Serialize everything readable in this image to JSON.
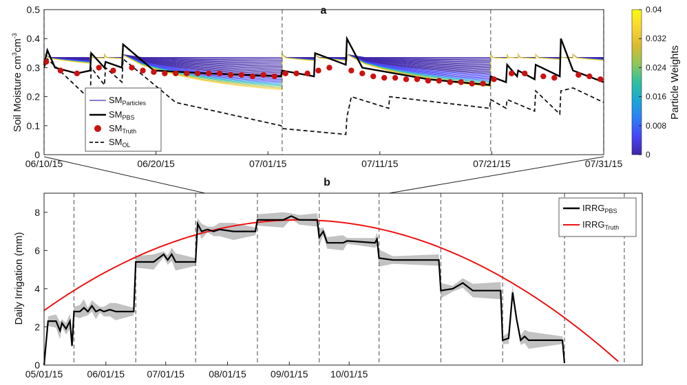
{
  "colors": {
    "axis": "#222222",
    "particle": "#3a2fb8",
    "pbs": "#000000",
    "truth_marker": "#cc1111",
    "openloop": "#111111",
    "truth_curve": "#ee1111",
    "ensemble_band": "#bbbbbb",
    "divider": "#666666"
  },
  "colorbar": {
    "label": "Particle Weights",
    "min": 0,
    "max": 0.04,
    "ticks": [
      "0",
      "0.008",
      "0.016",
      "0.024",
      "0.032",
      "0.04"
    ],
    "colormap": [
      "#3e26a8",
      "#4743f8",
      "#2d7ef6",
      "#1aa8d4",
      "#2fc0a0",
      "#8dc75a",
      "#d8bb30",
      "#f9d431",
      "#f9fb0e"
    ]
  },
  "chart_data": [
    {
      "panel": "a",
      "type": "line",
      "ylabel_main": "Soil Moisture cm",
      "ylabel_sup1": "3",
      "ylabel_mid": "cm",
      "ylabel_sup2": "-3",
      "ylim": [
        0,
        0.5
      ],
      "yticks": [
        "0",
        "0.1",
        "0.2",
        "0.3",
        "0.4",
        "0.5"
      ],
      "xticks": [
        "06/10/15",
        "06/20/15",
        "07/01/15",
        "07/11/15",
        "07/21/15",
        "07/31/15"
      ],
      "xrange_days": [
        0,
        51
      ],
      "dividers": [
        0,
        21.7,
        40.7,
        51
      ],
      "legend": {
        "particles": {
          "base": "SM",
          "sub": "Particles"
        },
        "pbs": {
          "base": "SM",
          "sub": "PBS"
        },
        "truth": {
          "base": "SM",
          "sub": "Truth"
        },
        "openloop": {
          "base": "SM",
          "sub": "OL"
        }
      },
      "irrigation_events": [
        0,
        4.2,
        5.5,
        7.1,
        21.7,
        24.7,
        27.6,
        40.7,
        42.2,
        43.2,
        44.8,
        47,
        48.2
      ],
      "pbs_series": [
        [
          0,
          0.31
        ],
        [
          0.3,
          0.36
        ],
        [
          1,
          0.3
        ],
        [
          3,
          0.28
        ],
        [
          4.2,
          0.29
        ],
        [
          4.3,
          0.35
        ],
        [
          5.5,
          0.3
        ],
        [
          5.6,
          0.32
        ],
        [
          7.1,
          0.3
        ],
        [
          7.2,
          0.38
        ],
        [
          10,
          0.29
        ],
        [
          15,
          0.28
        ],
        [
          21.6,
          0.27
        ],
        [
          21.7,
          0.29
        ],
        [
          24.6,
          0.27
        ],
        [
          24.7,
          0.35
        ],
        [
          27.5,
          0.31
        ],
        [
          27.6,
          0.4
        ],
        [
          29,
          0.3
        ],
        [
          35,
          0.26
        ],
        [
          40.6,
          0.24
        ],
        [
          40.7,
          0.27
        ],
        [
          42.1,
          0.25
        ],
        [
          42.2,
          0.31
        ],
        [
          43.1,
          0.27
        ],
        [
          43.2,
          0.29
        ],
        [
          44.7,
          0.26
        ],
        [
          44.8,
          0.31
        ],
        [
          47,
          0.27
        ],
        [
          47.1,
          0.4
        ],
        [
          48.2,
          0.29
        ],
        [
          51,
          0.25
        ]
      ],
      "openloop_series": [
        [
          0,
          0.3
        ],
        [
          0.3,
          0.33
        ],
        [
          4.2,
          0.19
        ],
        [
          4.3,
          0.3
        ],
        [
          5.5,
          0.24
        ],
        [
          5.6,
          0.3
        ],
        [
          7.1,
          0.25
        ],
        [
          7.2,
          0.33
        ],
        [
          12,
          0.18
        ],
        [
          21.6,
          0.1
        ],
        [
          21.7,
          0.09
        ],
        [
          27.5,
          0.07
        ],
        [
          27.6,
          0.13
        ],
        [
          28,
          0.2
        ],
        [
          31.4,
          0.16
        ],
        [
          31.5,
          0.2
        ],
        [
          40.6,
          0.16
        ],
        [
          40.7,
          0.19
        ],
        [
          42.1,
          0.16
        ],
        [
          42.2,
          0.19
        ],
        [
          44.7,
          0.15
        ],
        [
          44.8,
          0.22
        ],
        [
          47,
          0.14
        ],
        [
          47.1,
          0.22
        ],
        [
          48.2,
          0.23
        ],
        [
          51,
          0.18
        ]
      ],
      "truth_points": [
        [
          0.2,
          0.32
        ],
        [
          1.5,
          0.29
        ],
        [
          3,
          0.28
        ],
        [
          5,
          0.3
        ],
        [
          6.3,
          0.29
        ],
        [
          8,
          0.3
        ],
        [
          9,
          0.29
        ],
        [
          10,
          0.285
        ],
        [
          11,
          0.28
        ],
        [
          12,
          0.28
        ],
        [
          13,
          0.28
        ],
        [
          14,
          0.28
        ],
        [
          15,
          0.28
        ],
        [
          16,
          0.28
        ],
        [
          17,
          0.275
        ],
        [
          18,
          0.275
        ],
        [
          19,
          0.27
        ],
        [
          20,
          0.275
        ],
        [
          21,
          0.27
        ],
        [
          22,
          0.28
        ],
        [
          23,
          0.28
        ],
        [
          24,
          0.28
        ],
        [
          25,
          0.29
        ],
        [
          26,
          0.3
        ],
        [
          28,
          0.29
        ],
        [
          29,
          0.28
        ],
        [
          30,
          0.27
        ],
        [
          31,
          0.265
        ],
        [
          32,
          0.265
        ],
        [
          33,
          0.26
        ],
        [
          34,
          0.26
        ],
        [
          35,
          0.255
        ],
        [
          36,
          0.255
        ],
        [
          37,
          0.25
        ],
        [
          38,
          0.25
        ],
        [
          39,
          0.245
        ],
        [
          40,
          0.245
        ],
        [
          41,
          0.26
        ],
        [
          42.6,
          0.28
        ],
        [
          43.8,
          0.28
        ],
        [
          45.5,
          0.27
        ],
        [
          46.5,
          0.265
        ],
        [
          48.7,
          0.275
        ],
        [
          49.7,
          0.27
        ],
        [
          50.7,
          0.26
        ]
      ]
    },
    {
      "panel": "b",
      "type": "line",
      "ylabel": "Daily Irrigation (mm)",
      "ylim": [
        0,
        9
      ],
      "yticks": [
        "0",
        "2",
        "4",
        "6",
        "8"
      ],
      "xticks": [
        "05/01/15",
        "06/01/15",
        "07/01/15",
        "08/01/15",
        "09/01/15",
        "10/01/15"
      ],
      "xrange_days": [
        0,
        160
      ],
      "dividers": [
        15,
        46,
        76,
        107,
        138,
        168,
        199,
        230,
        261,
        291
      ],
      "legend": {
        "pbs": {
          "base": "IRRG",
          "sub": "PBS"
        },
        "truth": {
          "base": "IRRG",
          "sub": "Truth"
        }
      },
      "truth_curve": {
        "peak_day": 128,
        "peak_value": 7.6,
        "end_day": 290
      },
      "pbs_series": [
        [
          0,
          0
        ],
        [
          2,
          2.3
        ],
        [
          6,
          2.3
        ],
        [
          8,
          1.8
        ],
        [
          9,
          2.2
        ],
        [
          11,
          1.9
        ],
        [
          13,
          2.3
        ],
        [
          14,
          1.0
        ],
        [
          15,
          2.8
        ],
        [
          18,
          2.8
        ],
        [
          20,
          3.0
        ],
        [
          22,
          2.8
        ],
        [
          24,
          3.1
        ],
        [
          26,
          2.8
        ],
        [
          28,
          2.9
        ],
        [
          30,
          2.8
        ],
        [
          33,
          2.9
        ],
        [
          36,
          2.8
        ],
        [
          45,
          2.8
        ],
        [
          46,
          5.4
        ],
        [
          55,
          5.4
        ],
        [
          60,
          5.8
        ],
        [
          62,
          5.5
        ],
        [
          64,
          5.8
        ],
        [
          66,
          5.4
        ],
        [
          76,
          5.4
        ],
        [
          77,
          7.4
        ],
        [
          79,
          7.0
        ],
        [
          82,
          7.1
        ],
        [
          85,
          7.0
        ],
        [
          88,
          7.1
        ],
        [
          95,
          7.0
        ],
        [
          106,
          7.0
        ],
        [
          107,
          7.6
        ],
        [
          120,
          7.6
        ],
        [
          124,
          7.8
        ],
        [
          128,
          7.6
        ],
        [
          137,
          7.6
        ],
        [
          138,
          6.7
        ],
        [
          140,
          7.0
        ],
        [
          142,
          6.4
        ],
        [
          150,
          6.4
        ],
        [
          152,
          6.5
        ],
        [
          166,
          6.4
        ],
        [
          167,
          6.6
        ],
        [
          168,
          5.6
        ],
        [
          175,
          5.5
        ],
        [
          198,
          5.5
        ],
        [
          199,
          3.9
        ],
        [
          205,
          4.0
        ],
        [
          210,
          4.3
        ],
        [
          215,
          3.9
        ],
        [
          229,
          3.9
        ],
        [
          230,
          1.3
        ],
        [
          233,
          1.4
        ],
        [
          235,
          3.8
        ],
        [
          237,
          2.4
        ],
        [
          239,
          1.3
        ],
        [
          241,
          1.5
        ],
        [
          243,
          1.3
        ],
        [
          260,
          1.3
        ],
        [
          261,
          0.1
        ]
      ]
    }
  ]
}
